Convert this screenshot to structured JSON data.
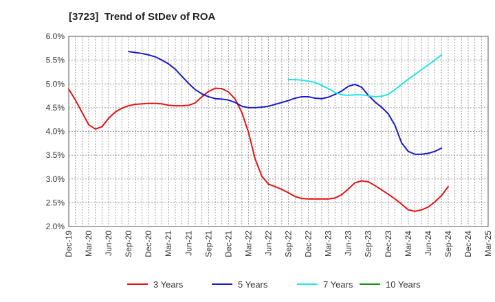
{
  "chart_data": {
    "type": "line",
    "title": "[3723]  Trend of StDev of ROA",
    "xlabel": "",
    "ylabel": "",
    "ylim": [
      2.0,
      6.0
    ],
    "yticks": [
      "2.0%",
      "2.5%",
      "3.0%",
      "3.5%",
      "4.0%",
      "4.5%",
      "5.0%",
      "5.5%",
      "6.0%"
    ],
    "ytick_values": [
      2.0,
      2.5,
      3.0,
      3.5,
      4.0,
      4.5,
      5.0,
      5.5,
      6.0
    ],
    "xticks": [
      "Dec-19",
      "Mar-20",
      "Jun-20",
      "Sep-20",
      "Dec-20",
      "Mar-21",
      "Jun-21",
      "Sep-21",
      "Dec-21",
      "Mar-22",
      "Jun-22",
      "Sep-22",
      "Dec-22",
      "Mar-23",
      "Jun-23",
      "Sep-23",
      "Dec-23",
      "Mar-24",
      "Jun-24",
      "Sep-24",
      "Dec-24",
      "Mar-25"
    ],
    "grid": true,
    "legend_position": "bottom",
    "series": [
      {
        "name": "3 Years",
        "color": "#e8110f",
        "start_index": 0,
        "values": [
          4.89,
          4.66,
          4.4,
          4.14,
          4.05,
          4.1,
          4.28,
          4.41,
          4.49,
          4.54,
          4.57,
          4.58,
          4.59,
          4.59,
          4.58,
          4.55,
          4.54,
          4.54,
          4.55,
          4.6,
          4.73,
          4.84,
          4.91,
          4.9,
          4.83,
          4.68,
          4.4,
          3.98,
          3.42,
          3.06,
          2.89,
          2.84,
          2.78,
          2.71,
          2.63,
          2.59,
          2.58,
          2.58,
          2.58,
          2.58,
          2.6,
          2.67,
          2.79,
          2.92,
          2.96,
          2.94,
          2.86,
          2.77,
          2.68,
          2.58,
          2.47,
          2.35,
          2.32,
          2.35,
          2.41,
          2.52,
          2.65,
          2.84
        ]
      },
      {
        "name": "5 Years",
        "color": "#1a1acc",
        "start_index": 9,
        "values": [
          5.68,
          5.66,
          5.64,
          5.61,
          5.57,
          5.5,
          5.42,
          5.31,
          5.16,
          5.01,
          4.88,
          4.79,
          4.73,
          4.69,
          4.68,
          4.66,
          4.61,
          4.53,
          4.5,
          4.5,
          4.51,
          4.53,
          4.57,
          4.61,
          4.65,
          4.7,
          4.73,
          4.73,
          4.7,
          4.69,
          4.72,
          4.78,
          4.85,
          4.95,
          4.99,
          4.93,
          4.76,
          4.62,
          4.51,
          4.37,
          4.13,
          3.76,
          3.58,
          3.52,
          3.52,
          3.54,
          3.58,
          3.65
        ]
      },
      {
        "name": "7 Years",
        "color": "#22e5e5",
        "start_index": 33,
        "values": [
          5.09,
          5.09,
          5.08,
          5.06,
          5.03,
          4.97,
          4.9,
          4.82,
          4.77,
          4.76,
          4.77,
          4.77,
          4.75,
          4.73,
          4.74,
          4.78,
          4.88,
          4.99,
          5.1,
          5.2,
          5.3,
          5.4,
          5.5,
          5.61
        ]
      },
      {
        "name": "10 Years",
        "color": "#1a8c1a",
        "start_index": 0,
        "values": []
      }
    ]
  }
}
